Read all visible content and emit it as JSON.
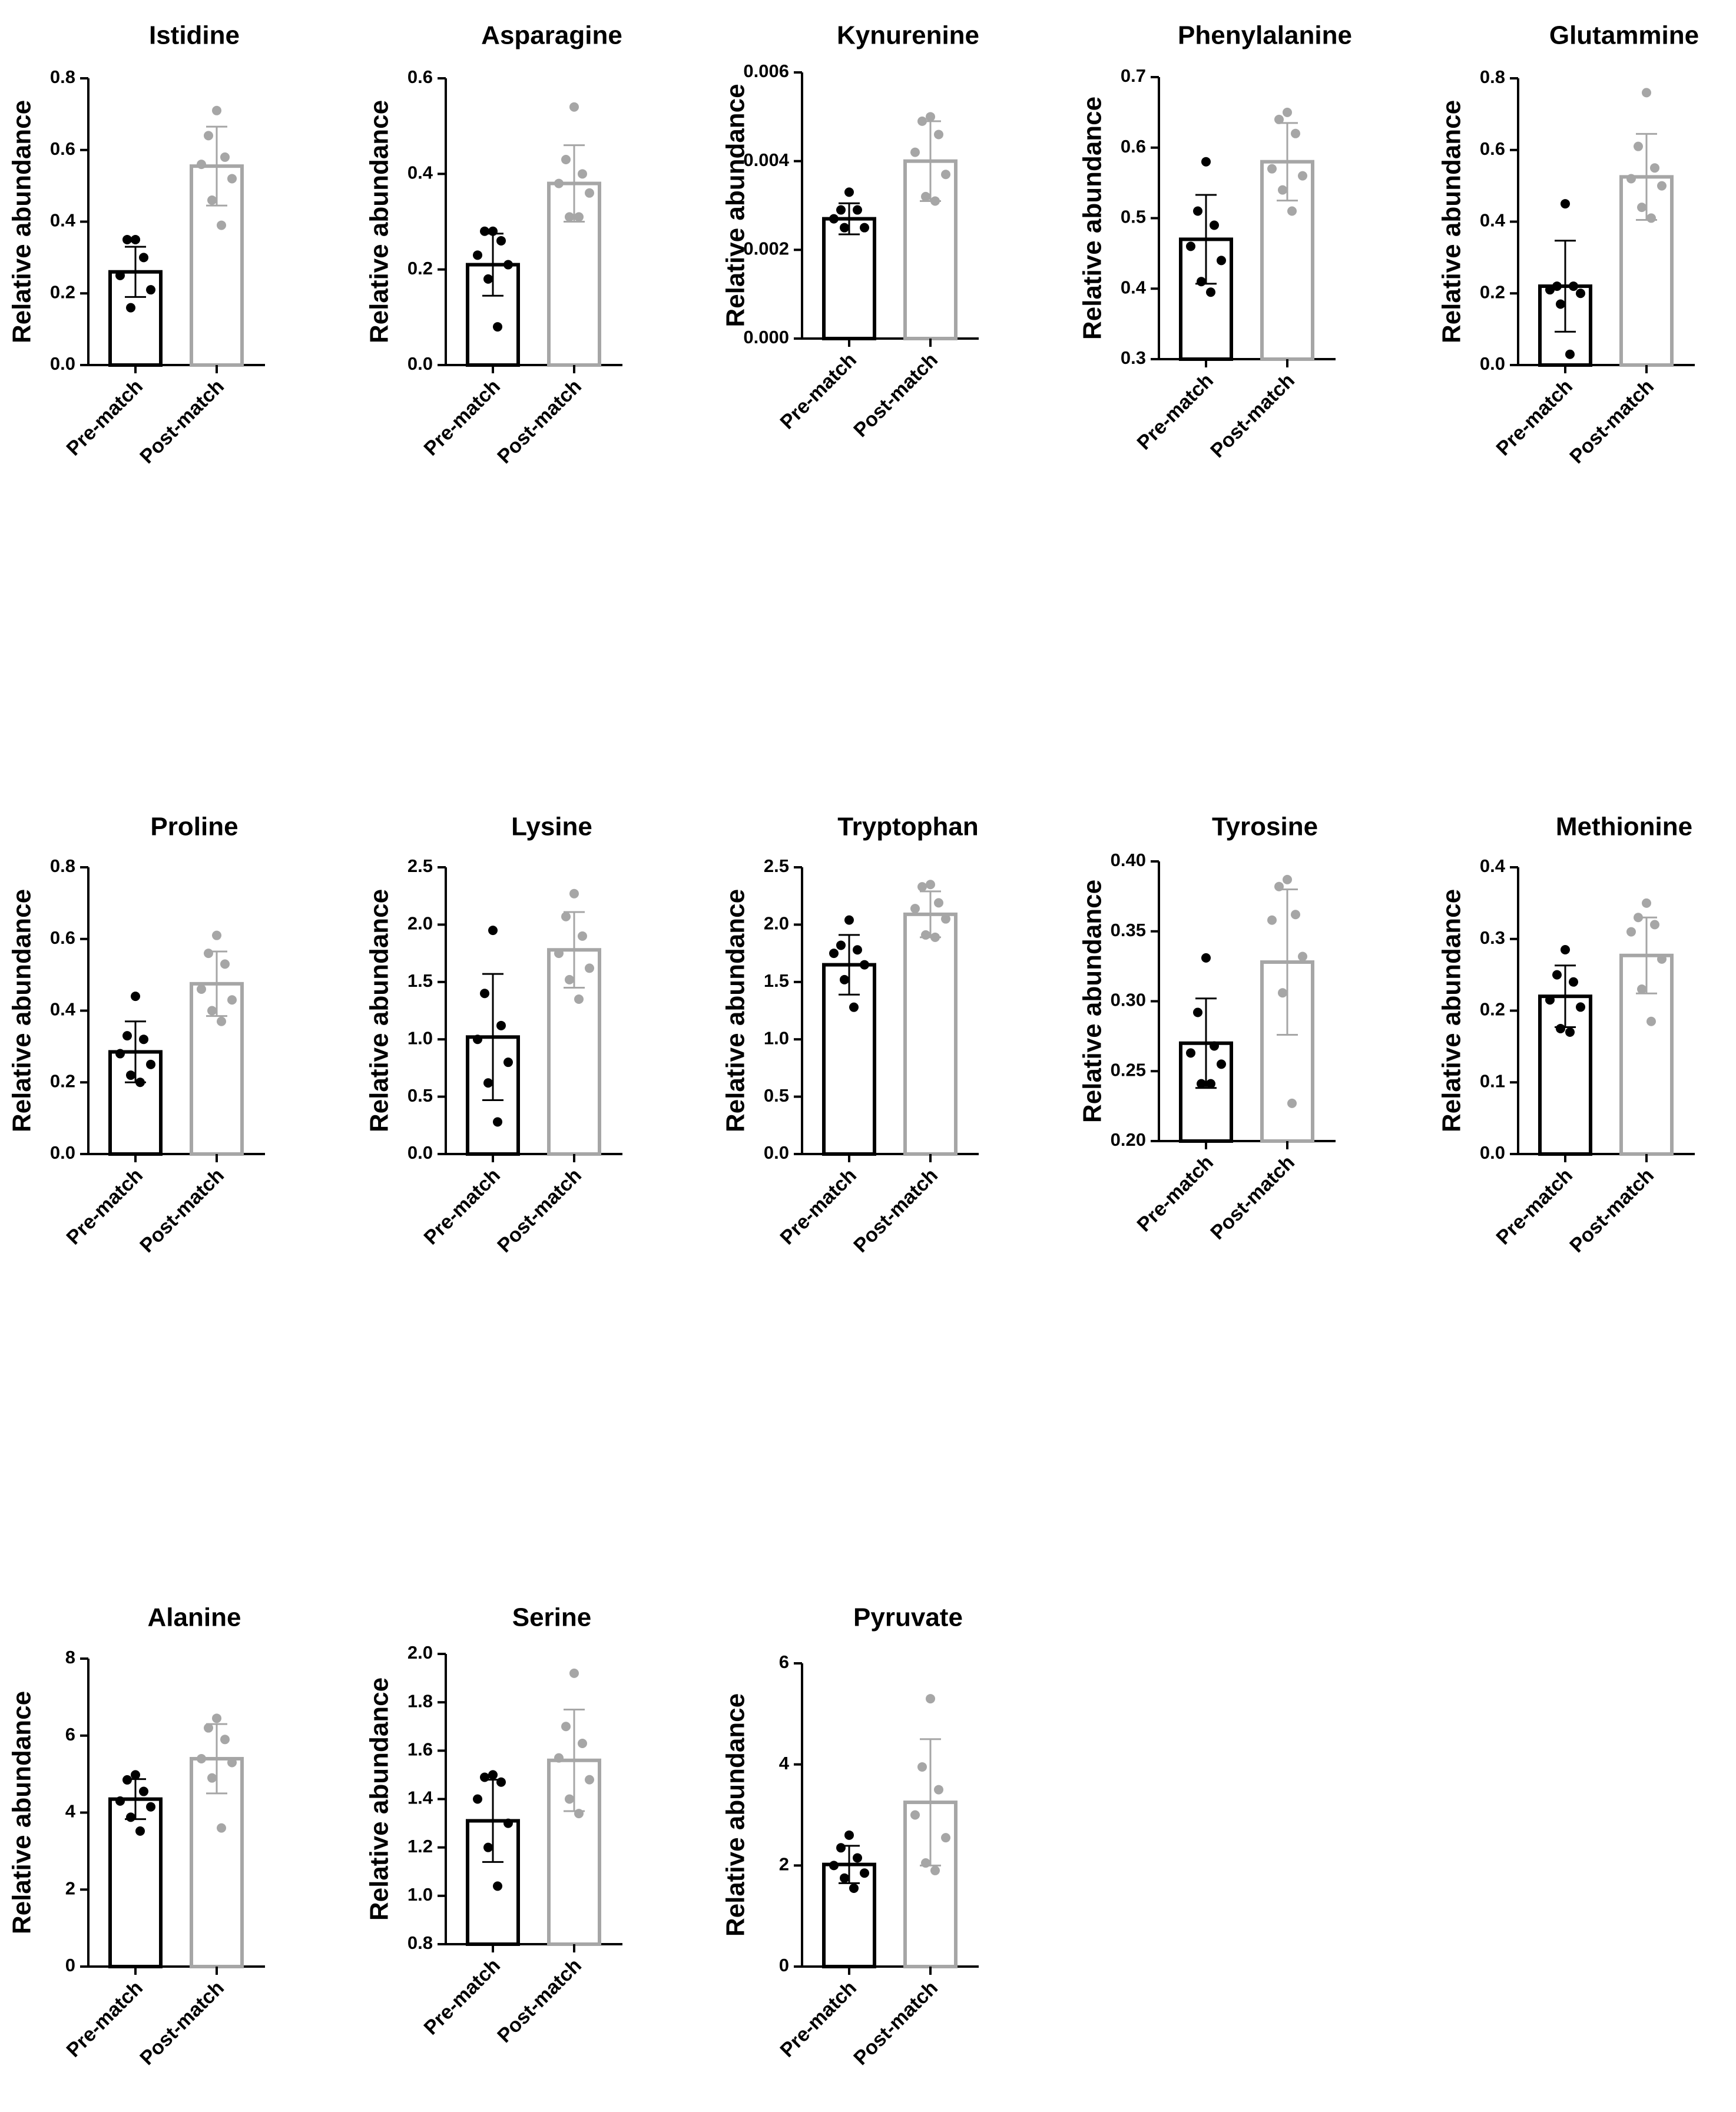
{
  "figure_title": "",
  "colors": {
    "pre": "#000000",
    "post": "#a6a6a6",
    "axis": "#000000"
  },
  "chart_data": [
    {
      "type": "bar",
      "title": "Istidine",
      "ylabel": "Relative abundance",
      "categories": [
        "Pre-match",
        "Post-match"
      ],
      "ylim": [
        0,
        0.8
      ],
      "yticks": [
        "0.0",
        "0.2",
        "0.4",
        "0.6",
        "0.8"
      ],
      "series": [
        {
          "name": "Pre-match",
          "mean": 0.26,
          "sd": 0.07,
          "points": [
            0.35,
            0.35,
            0.3,
            0.25,
            0.21,
            0.16
          ]
        },
        {
          "name": "Post-match",
          "mean": 0.555,
          "sd": 0.11,
          "points": [
            0.71,
            0.64,
            0.58,
            0.56,
            0.52,
            0.46,
            0.39
          ]
        }
      ]
    },
    {
      "type": "bar",
      "title": "Asparagine",
      "ylabel": "Relative abundance",
      "categories": [
        "Pre-match",
        "Post-match"
      ],
      "ylim": [
        0,
        0.6
      ],
      "yticks": [
        "0.0",
        "0.2",
        "0.4",
        "0.6"
      ],
      "series": [
        {
          "name": "Pre-match",
          "mean": 0.21,
          "sd": 0.065,
          "points": [
            0.28,
            0.28,
            0.26,
            0.23,
            0.21,
            0.18,
            0.08
          ]
        },
        {
          "name": "Post-match",
          "mean": 0.38,
          "sd": 0.08,
          "points": [
            0.54,
            0.43,
            0.4,
            0.38,
            0.36,
            0.31,
            0.31
          ]
        }
      ]
    },
    {
      "type": "bar",
      "title": "Kynurenine",
      "ylabel": "Relative abundance",
      "categories": [
        "Pre-match",
        "Post-match"
      ],
      "ylim": [
        0,
        0.006
      ],
      "yticks": [
        "0.000",
        "0.002",
        "0.004",
        "0.006"
      ],
      "series": [
        {
          "name": "Pre-match",
          "mean": 0.0027,
          "sd": 0.00035,
          "points": [
            0.0033,
            0.0029,
            0.0029,
            0.0027,
            0.0025,
            0.0025
          ]
        },
        {
          "name": "Post-match",
          "mean": 0.004,
          "sd": 0.0009,
          "points": [
            0.005,
            0.0049,
            0.0046,
            0.0042,
            0.0037,
            0.0032,
            0.0031
          ]
        }
      ]
    },
    {
      "type": "bar",
      "title": "Phenylalanine",
      "ylabel": "Relative abundance",
      "categories": [
        "Pre-match",
        "Post-match"
      ],
      "ylim": [
        0.3,
        0.7
      ],
      "yticks": [
        "0.3",
        "0.4",
        "0.5",
        "0.6",
        "0.7"
      ],
      "series": [
        {
          "name": "Pre-match",
          "mean": 0.47,
          "sd": 0.063,
          "points": [
            0.58,
            0.51,
            0.49,
            0.46,
            0.44,
            0.41,
            0.395
          ]
        },
        {
          "name": "Post-match",
          "mean": 0.58,
          "sd": 0.055,
          "points": [
            0.65,
            0.64,
            0.62,
            0.57,
            0.56,
            0.54,
            0.51
          ]
        }
      ]
    },
    {
      "type": "bar",
      "title": "Glutammine",
      "ylabel": "Relative abundance",
      "categories": [
        "Pre-match",
        "Post-match"
      ],
      "ylim": [
        0,
        0.8
      ],
      "yticks": [
        "0.0",
        "0.2",
        "0.4",
        "0.6",
        "0.8"
      ],
      "series": [
        {
          "name": "Pre-match",
          "mean": 0.22,
          "sd": 0.127,
          "points": [
            0.45,
            0.22,
            0.22,
            0.21,
            0.2,
            0.17,
            0.03
          ]
        },
        {
          "name": "Post-match",
          "mean": 0.525,
          "sd": 0.12,
          "points": [
            0.76,
            0.61,
            0.55,
            0.52,
            0.5,
            0.44,
            0.41
          ]
        }
      ]
    },
    {
      "type": "bar",
      "title": "Proline",
      "ylabel": "Relative abundance",
      "categories": [
        "Pre-match",
        "Post-match"
      ],
      "ylim": [
        0,
        0.8
      ],
      "yticks": [
        "0.0",
        "0.2",
        "0.4",
        "0.6",
        "0.8"
      ],
      "series": [
        {
          "name": "Pre-match",
          "mean": 0.285,
          "sd": 0.085,
          "points": [
            0.44,
            0.33,
            0.32,
            0.28,
            0.25,
            0.22,
            0.2
          ]
        },
        {
          "name": "Post-match",
          "mean": 0.475,
          "sd": 0.09,
          "points": [
            0.61,
            0.56,
            0.53,
            0.46,
            0.43,
            0.4,
            0.37
          ]
        }
      ]
    },
    {
      "type": "bar",
      "title": "Lysine",
      "ylabel": "Relative abundance",
      "categories": [
        "Pre-match",
        "Post-match"
      ],
      "ylim": [
        0,
        2.5
      ],
      "yticks": [
        "0.0",
        "0.5",
        "1.0",
        "1.5",
        "2.0",
        "2.5"
      ],
      "series": [
        {
          "name": "Pre-match",
          "mean": 1.02,
          "sd": 0.55,
          "points": [
            1.95,
            1.4,
            1.12,
            1.0,
            0.8,
            0.62,
            0.28
          ]
        },
        {
          "name": "Post-match",
          "mean": 1.78,
          "sd": 0.33,
          "points": [
            2.27,
            2.07,
            1.9,
            1.75,
            1.62,
            1.52,
            1.35
          ]
        }
      ]
    },
    {
      "type": "bar",
      "title": "Tryptophan",
      "ylabel": "Relative abundance",
      "categories": [
        "Pre-match",
        "Post-match"
      ],
      "ylim": [
        0,
        2.5
      ],
      "yticks": [
        "0.0",
        "0.5",
        "1.0",
        "1.5",
        "2.0",
        "2.5"
      ],
      "series": [
        {
          "name": "Pre-match",
          "mean": 1.65,
          "sd": 0.26,
          "points": [
            2.04,
            1.82,
            1.78,
            1.75,
            1.65,
            1.52,
            1.28
          ]
        },
        {
          "name": "Post-match",
          "mean": 2.09,
          "sd": 0.2,
          "points": [
            2.35,
            2.33,
            2.19,
            2.14,
            2.05,
            1.91,
            1.89
          ]
        }
      ]
    },
    {
      "type": "bar",
      "title": "Tyrosine",
      "ylabel": "Relative abundance",
      "categories": [
        "Pre-match",
        "Post-match"
      ],
      "ylim": [
        0.2,
        0.4
      ],
      "yticks": [
        "0.20",
        "0.25",
        "0.30",
        "0.35",
        "0.40"
      ],
      "series": [
        {
          "name": "Pre-match",
          "mean": 0.27,
          "sd": 0.032,
          "points": [
            0.331,
            0.292,
            0.268,
            0.263,
            0.255,
            0.241,
            0.241
          ]
        },
        {
          "name": "Post-match",
          "mean": 0.328,
          "sd": 0.052,
          "points": [
            0.387,
            0.382,
            0.362,
            0.358,
            0.332,
            0.306,
            0.227
          ]
        }
      ]
    },
    {
      "type": "bar",
      "title": "Methionine",
      "ylabel": "Relative abundance",
      "categories": [
        "Pre-match",
        "Post-match"
      ],
      "ylim": [
        0,
        0.4
      ],
      "yticks": [
        "0.0",
        "0.1",
        "0.2",
        "0.3",
        "0.4"
      ],
      "series": [
        {
          "name": "Pre-match",
          "mean": 0.22,
          "sd": 0.043,
          "points": [
            0.285,
            0.25,
            0.24,
            0.215,
            0.205,
            0.175,
            0.17
          ]
        },
        {
          "name": "Post-match",
          "mean": 0.277,
          "sd": 0.053,
          "points": [
            0.35,
            0.33,
            0.32,
            0.31,
            0.272,
            0.23,
            0.185
          ]
        }
      ]
    },
    {
      "type": "bar",
      "title": "Alanine",
      "ylabel": "Relative abundance",
      "categories": [
        "Pre-match",
        "Post-match"
      ],
      "ylim": [
        0,
        8
      ],
      "yticks": [
        "0",
        "2",
        "4",
        "6",
        "8"
      ],
      "series": [
        {
          "name": "Pre-match",
          "mean": 4.35,
          "sd": 0.52,
          "points": [
            4.98,
            4.85,
            4.55,
            4.3,
            4.15,
            3.88,
            3.52
          ]
        },
        {
          "name": "Post-match",
          "mean": 5.4,
          "sd": 0.9,
          "points": [
            6.45,
            6.2,
            5.9,
            5.4,
            5.3,
            4.9,
            3.6
          ]
        }
      ]
    },
    {
      "type": "bar",
      "title": "Serine",
      "ylabel": "Relative abundance",
      "categories": [
        "Pre-match",
        "Post-match"
      ],
      "ylim": [
        0.8,
        2.0
      ],
      "yticks": [
        "0.8",
        "1.0",
        "1.2",
        "1.4",
        "1.6",
        "1.8",
        "2.0"
      ],
      "series": [
        {
          "name": "Pre-match",
          "mean": 1.31,
          "sd": 0.17,
          "points": [
            1.5,
            1.49,
            1.47,
            1.4,
            1.3,
            1.2,
            1.04
          ]
        },
        {
          "name": "Post-match",
          "mean": 1.56,
          "sd": 0.21,
          "points": [
            1.92,
            1.7,
            1.63,
            1.57,
            1.48,
            1.4,
            1.34
          ]
        }
      ]
    },
    {
      "type": "bar",
      "title": "Pyruvate",
      "ylabel": "Relative abundance",
      "categories": [
        "Pre-match",
        "Post-match"
      ],
      "ylim": [
        0,
        6
      ],
      "yticks": [
        "0",
        "2",
        "4",
        "6"
      ],
      "series": [
        {
          "name": "Pre-match",
          "mean": 2.02,
          "sd": 0.37,
          "points": [
            2.6,
            2.35,
            2.15,
            2.0,
            1.85,
            1.75,
            1.55
          ]
        },
        {
          "name": "Post-match",
          "mean": 3.25,
          "sd": 1.25,
          "points": [
            5.3,
            3.95,
            3.5,
            3.0,
            2.55,
            2.05,
            1.9
          ]
        }
      ]
    }
  ]
}
